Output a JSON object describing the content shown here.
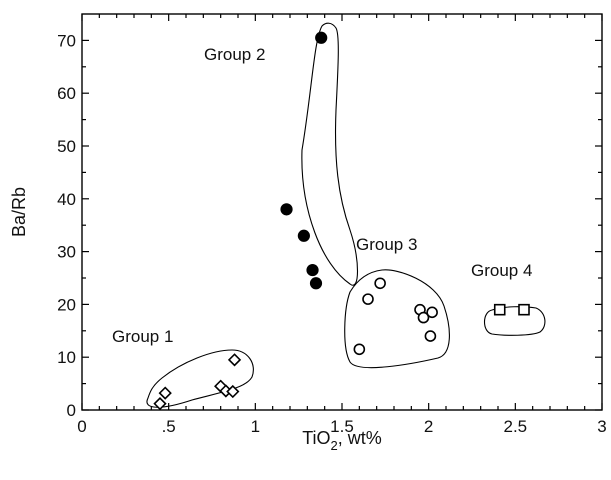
{
  "chart_data": {
    "type": "scatter",
    "title": "",
    "xlabel": "TiO",
    "xlabel_subscript": "2",
    "xlabel_suffix": ", wt%",
    "ylabel": "Ba/Rb",
    "xlim": [
      0,
      3
    ],
    "ylim": [
      0,
      75
    ],
    "x_ticks": [
      0,
      0.5,
      1,
      1.5,
      2,
      2.5,
      3
    ],
    "x_tick_labels": [
      "0",
      ".5",
      "1",
      "1.5",
      "2",
      "2.5",
      "3"
    ],
    "y_ticks": [
      0,
      10,
      20,
      30,
      40,
      50,
      60,
      70
    ],
    "y_tick_labels": [
      "0",
      "10",
      "20",
      "30",
      "40",
      "50",
      "60",
      "70"
    ],
    "grid": false,
    "groups": [
      {
        "label": "Group 1",
        "marker": "diamond-open",
        "points": [
          [
            0.45,
            1.2
          ],
          [
            0.48,
            3.2
          ],
          [
            0.8,
            4.5
          ],
          [
            0.83,
            3.6
          ],
          [
            0.87,
            3.5
          ],
          [
            0.88,
            9.5
          ]
        ]
      },
      {
        "label": "Group 2",
        "marker": "circle-filled",
        "points": [
          [
            1.38,
            70.5
          ],
          [
            1.18,
            38
          ],
          [
            1.28,
            33
          ],
          [
            1.33,
            26.5
          ],
          [
            1.35,
            24
          ]
        ]
      },
      {
        "label": "Group 3",
        "marker": "circle-open",
        "points": [
          [
            1.6,
            11.5
          ],
          [
            1.65,
            21
          ],
          [
            1.72,
            24
          ],
          [
            1.95,
            19
          ],
          [
            1.97,
            17.5
          ],
          [
            2.01,
            14
          ],
          [
            2.02,
            18.5
          ]
        ]
      },
      {
        "label": "Group 4",
        "marker": "square-open",
        "points": [
          [
            2.41,
            19
          ],
          [
            2.55,
            19
          ]
        ]
      }
    ]
  }
}
